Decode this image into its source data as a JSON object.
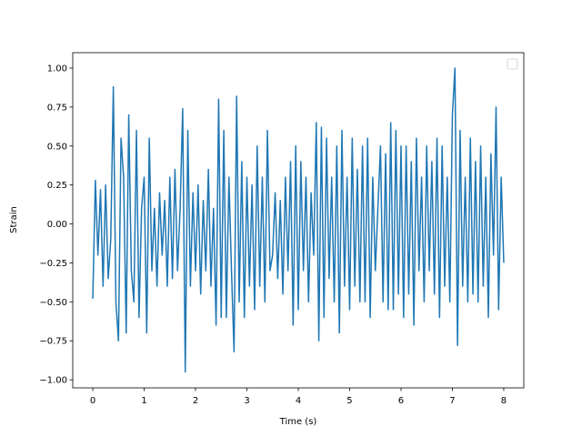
{
  "chart_data": {
    "type": "line",
    "xlabel": "Time (s)",
    "ylabel": "Strain",
    "xlim": [
      -0.39,
      8.39
    ],
    "ylim": [
      -1.052,
      1.099
    ],
    "xticks": [
      0,
      1,
      2,
      3,
      4,
      5,
      6,
      7,
      8
    ],
    "yticks": [
      {
        "value": -1,
        "label": "−1.00"
      },
      {
        "value": -0.75,
        "label": "−0.75"
      },
      {
        "value": -0.5,
        "label": "−0.50"
      },
      {
        "value": -0.25,
        "label": "−0.25"
      },
      {
        "value": 0,
        "label": "0.00"
      },
      {
        "value": 0.25,
        "label": "0.25"
      },
      {
        "value": 0.5,
        "label": "0.50"
      },
      {
        "value": 0.75,
        "label": "0.75"
      },
      {
        "value": 1,
        "label": "1.00"
      }
    ],
    "grid": false,
    "series": [
      {
        "color": "#1f77b4",
        "x": [
          0,
          0.05,
          0.1,
          0.15,
          0.2,
          0.25,
          0.3,
          0.35,
          0.4,
          0.45,
          0.5,
          0.55,
          0.6,
          0.65,
          0.7,
          0.75,
          0.8,
          0.85,
          0.9,
          0.95,
          1,
          1.05,
          1.1,
          1.15,
          1.2,
          1.25,
          1.3,
          1.35,
          1.4,
          1.45,
          1.5,
          1.55,
          1.6,
          1.65,
          1.7,
          1.75,
          1.8,
          1.85,
          1.9,
          1.95,
          2,
          2.05,
          2.1,
          2.15,
          2.2,
          2.25,
          2.3,
          2.35,
          2.4,
          2.45,
          2.5,
          2.55,
          2.6,
          2.65,
          2.7,
          2.75,
          2.8,
          2.85,
          2.9,
          2.95,
          3,
          3.05,
          3.1,
          3.15,
          3.2,
          3.25,
          3.3,
          3.35,
          3.4,
          3.45,
          3.5,
          3.55,
          3.6,
          3.65,
          3.7,
          3.75,
          3.8,
          3.85,
          3.9,
          3.95,
          4,
          4.05,
          4.1,
          4.15,
          4.2,
          4.25,
          4.3,
          4.35,
          4.4,
          4.45,
          4.5,
          4.55,
          4.6,
          4.65,
          4.7,
          4.75,
          4.8,
          4.85,
          4.9,
          4.95,
          5,
          5.05,
          5.1,
          5.15,
          5.2,
          5.25,
          5.3,
          5.35,
          5.4,
          5.45,
          5.5,
          5.55,
          5.6,
          5.65,
          5.7,
          5.75,
          5.8,
          5.85,
          5.9,
          5.95,
          6,
          6.05,
          6.1,
          6.15,
          6.2,
          6.25,
          6.3,
          6.35,
          6.4,
          6.45,
          6.5,
          6.55,
          6.6,
          6.65,
          6.7,
          6.75,
          6.8,
          6.85,
          6.9,
          6.95,
          7,
          7.05,
          7.1,
          7.15,
          7.2,
          7.25,
          7.3,
          7.35,
          7.4,
          7.45,
          7.5,
          7.55,
          7.6,
          7.65,
          7.7,
          7.75,
          7.8,
          7.85,
          7.9,
          7.95,
          8
        ],
        "values": [
          -0.48,
          0.28,
          -0.2,
          0.22,
          -0.4,
          0.25,
          -0.35,
          -0.1,
          0.88,
          -0.5,
          -0.75,
          0.55,
          0.3,
          -0.7,
          0.7,
          -0.3,
          -0.5,
          0.6,
          -0.6,
          0.1,
          0.3,
          -0.7,
          0.55,
          -0.3,
          0.1,
          -0.4,
          0.2,
          -0.2,
          0.15,
          -0.4,
          0.3,
          -0.35,
          0.35,
          -0.3,
          0.1,
          0.74,
          -0.95,
          0.6,
          -0.4,
          0.2,
          -0.3,
          0.25,
          -0.45,
          0.15,
          -0.3,
          0.35,
          -0.4,
          0.1,
          -0.65,
          0.8,
          -0.6,
          0.6,
          -0.6,
          0.3,
          -0.3,
          -0.82,
          0.82,
          -0.5,
          0.4,
          -0.6,
          0.3,
          -0.4,
          0.25,
          -0.55,
          0.5,
          -0.4,
          0.3,
          -0.5,
          0.6,
          -0.3,
          -0.2,
          0.2,
          -0.35,
          0.15,
          -0.45,
          0.3,
          -0.3,
          0.4,
          -0.65,
          0.5,
          -0.55,
          0.4,
          -0.3,
          0.3,
          -0.5,
          0.2,
          -0.2,
          0.65,
          -0.75,
          0.62,
          -0.6,
          0.55,
          -0.35,
          0.3,
          -0.5,
          0.5,
          -0.7,
          0.6,
          -0.4,
          0.3,
          -0.55,
          0.55,
          -0.4,
          0.35,
          -0.5,
          0.5,
          -0.5,
          0.55,
          -0.6,
          0.3,
          -0.3,
          0.1,
          0.5,
          -0.5,
          0.45,
          -0.55,
          0.65,
          -0.55,
          0.6,
          -0.45,
          0.5,
          -0.6,
          0.5,
          -0.45,
          0.4,
          -0.65,
          0.55,
          -0.3,
          0.3,
          -0.5,
          0.5,
          -0.3,
          0.4,
          -0.45,
          0.55,
          -0.6,
          0.5,
          -0.4,
          0.3,
          -0.5,
          0.7,
          1.0,
          -0.78,
          0.6,
          -0.4,
          0.3,
          -0.5,
          0.55,
          -0.45,
          0.4,
          -0.5,
          0.5,
          -0.4,
          0.3,
          -0.6,
          0.45,
          -0.2,
          0.75,
          -0.55,
          0.3,
          -0.25
        ]
      }
    ]
  }
}
